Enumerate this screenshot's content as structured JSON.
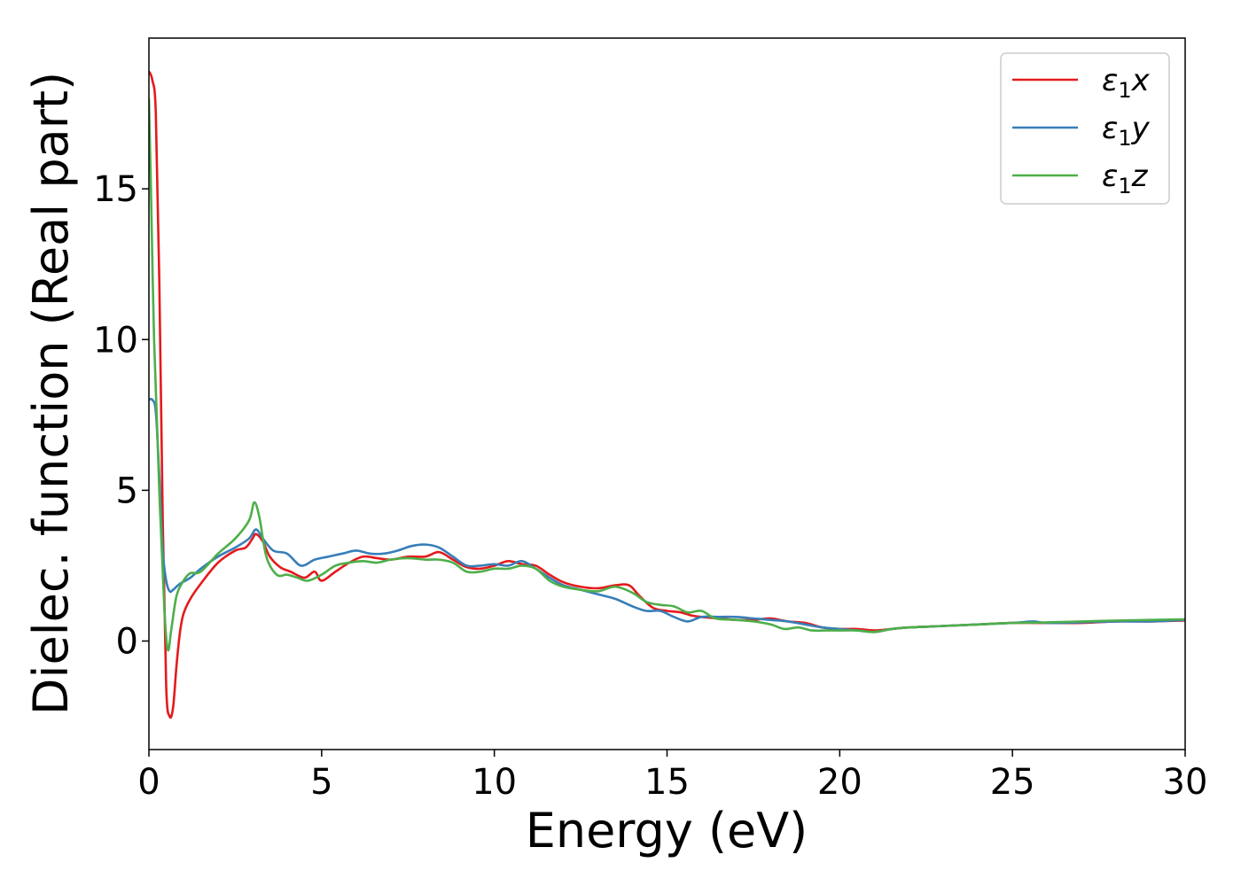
{
  "chart_data": {
    "type": "line",
    "xlabel": "Energy (eV)",
    "ylabel": "Dielec. function (Real part)",
    "xlim": [
      0,
      30
    ],
    "ylim": [
      -3.6,
      20
    ],
    "xticks": [
      0,
      5,
      10,
      15,
      20,
      25,
      30
    ],
    "yticks": [
      0,
      5,
      10,
      15
    ],
    "grid": false,
    "legend_position": "top-right",
    "series": [
      {
        "name": "ε1x",
        "legend_main": "ε",
        "legend_sub": "1",
        "legend_tail": "x",
        "color": "#e41a1c",
        "points": [
          [
            0,
            18.9
          ],
          [
            0.1,
            18.6
          ],
          [
            0.2,
            17.5
          ],
          [
            0.3,
            12
          ],
          [
            0.4,
            4
          ],
          [
            0.5,
            -1.5
          ],
          [
            0.6,
            -2.5
          ],
          [
            0.7,
            -2.2
          ],
          [
            0.8,
            -0.8
          ],
          [
            0.9,
            0.3
          ],
          [
            1.0,
            0.9
          ],
          [
            1.2,
            1.4
          ],
          [
            1.5,
            1.9
          ],
          [
            2.0,
            2.6
          ],
          [
            2.5,
            3.0
          ],
          [
            2.8,
            3.1
          ],
          [
            3.0,
            3.4
          ],
          [
            3.1,
            3.55
          ],
          [
            3.3,
            3.3
          ],
          [
            3.5,
            2.8
          ],
          [
            3.8,
            2.45
          ],
          [
            4.1,
            2.3
          ],
          [
            4.5,
            2.1
          ],
          [
            4.8,
            2.3
          ],
          [
            5.0,
            2.0
          ],
          [
            5.4,
            2.3
          ],
          [
            5.8,
            2.6
          ],
          [
            6.2,
            2.8
          ],
          [
            6.6,
            2.75
          ],
          [
            7.0,
            2.7
          ],
          [
            7.5,
            2.8
          ],
          [
            8.0,
            2.8
          ],
          [
            8.4,
            2.95
          ],
          [
            8.8,
            2.7
          ],
          [
            9.2,
            2.45
          ],
          [
            9.6,
            2.4
          ],
          [
            10.0,
            2.5
          ],
          [
            10.4,
            2.65
          ],
          [
            10.8,
            2.55
          ],
          [
            11.2,
            2.5
          ],
          [
            11.6,
            2.2
          ],
          [
            12.0,
            1.95
          ],
          [
            12.5,
            1.8
          ],
          [
            13.0,
            1.75
          ],
          [
            13.5,
            1.85
          ],
          [
            13.9,
            1.85
          ],
          [
            14.2,
            1.5
          ],
          [
            14.6,
            1.1
          ],
          [
            15.0,
            1.0
          ],
          [
            15.4,
            0.95
          ],
          [
            15.7,
            0.85
          ],
          [
            16.0,
            0.8
          ],
          [
            16.5,
            0.75
          ],
          [
            17.0,
            0.7
          ],
          [
            17.5,
            0.7
          ],
          [
            18.0,
            0.75
          ],
          [
            18.5,
            0.65
          ],
          [
            19.0,
            0.6
          ],
          [
            19.5,
            0.45
          ],
          [
            20.0,
            0.4
          ],
          [
            20.5,
            0.4
          ],
          [
            21.0,
            0.35
          ],
          [
            21.5,
            0.4
          ],
          [
            22.0,
            0.45
          ],
          [
            23.0,
            0.5
          ],
          [
            24.0,
            0.55
          ],
          [
            25.0,
            0.6
          ],
          [
            26.0,
            0.6
          ],
          [
            27.0,
            0.6
          ],
          [
            28.0,
            0.65
          ],
          [
            29.0,
            0.65
          ],
          [
            30.0,
            0.68
          ]
        ]
      },
      {
        "name": "ε1y",
        "legend_main": "ε",
        "legend_sub": "1",
        "legend_tail": "y",
        "color": "#377eb8",
        "points": [
          [
            0,
            8.0
          ],
          [
            0.1,
            8.0
          ],
          [
            0.2,
            7.6
          ],
          [
            0.3,
            5.5
          ],
          [
            0.4,
            3.0
          ],
          [
            0.5,
            2.0
          ],
          [
            0.6,
            1.65
          ],
          [
            0.7,
            1.7
          ],
          [
            0.9,
            1.9
          ],
          [
            1.2,
            2.1
          ],
          [
            1.5,
            2.4
          ],
          [
            2.0,
            2.8
          ],
          [
            2.5,
            3.1
          ],
          [
            2.9,
            3.4
          ],
          [
            3.1,
            3.7
          ],
          [
            3.3,
            3.4
          ],
          [
            3.6,
            3.0
          ],
          [
            4.0,
            2.9
          ],
          [
            4.4,
            2.5
          ],
          [
            4.8,
            2.7
          ],
          [
            5.2,
            2.8
          ],
          [
            5.6,
            2.9
          ],
          [
            6.0,
            3.0
          ],
          [
            6.4,
            2.9
          ],
          [
            6.8,
            2.9
          ],
          [
            7.2,
            3.0
          ],
          [
            7.6,
            3.15
          ],
          [
            8.0,
            3.2
          ],
          [
            8.4,
            3.1
          ],
          [
            8.8,
            2.8
          ],
          [
            9.2,
            2.5
          ],
          [
            9.6,
            2.5
          ],
          [
            10.0,
            2.55
          ],
          [
            10.4,
            2.5
          ],
          [
            10.8,
            2.65
          ],
          [
            11.2,
            2.4
          ],
          [
            11.6,
            2.1
          ],
          [
            12.0,
            1.85
          ],
          [
            12.5,
            1.7
          ],
          [
            13.0,
            1.55
          ],
          [
            13.5,
            1.4
          ],
          [
            14.0,
            1.15
          ],
          [
            14.4,
            1.0
          ],
          [
            14.8,
            1.0
          ],
          [
            15.2,
            0.8
          ],
          [
            15.6,
            0.65
          ],
          [
            16.0,
            0.8
          ],
          [
            16.5,
            0.8
          ],
          [
            17.0,
            0.8
          ],
          [
            17.5,
            0.75
          ],
          [
            18.0,
            0.7
          ],
          [
            18.5,
            0.65
          ],
          [
            19.0,
            0.55
          ],
          [
            19.5,
            0.45
          ],
          [
            20.0,
            0.4
          ],
          [
            20.5,
            0.35
          ],
          [
            21.0,
            0.3
          ],
          [
            21.5,
            0.4
          ],
          [
            22.0,
            0.45
          ],
          [
            23.0,
            0.5
          ],
          [
            24.0,
            0.55
          ],
          [
            25.0,
            0.6
          ],
          [
            25.6,
            0.65
          ],
          [
            26.0,
            0.6
          ],
          [
            27.0,
            0.62
          ],
          [
            28.0,
            0.65
          ],
          [
            29.0,
            0.65
          ],
          [
            30.0,
            0.7
          ]
        ]
      },
      {
        "name": "ε1z",
        "legend_main": "ε",
        "legend_sub": "1",
        "legend_tail": "z",
        "color": "#4daf4a",
        "points": [
          [
            0,
            18.0
          ],
          [
            0.05,
            15.5
          ],
          [
            0.15,
            10
          ],
          [
            0.3,
            5
          ],
          [
            0.45,
            1.0
          ],
          [
            0.55,
            -0.3
          ],
          [
            0.65,
            0.4
          ],
          [
            0.8,
            1.5
          ],
          [
            1.0,
            2.0
          ],
          [
            1.2,
            2.25
          ],
          [
            1.5,
            2.3
          ],
          [
            2.0,
            2.9
          ],
          [
            2.5,
            3.4
          ],
          [
            2.9,
            4.0
          ],
          [
            3.05,
            4.6
          ],
          [
            3.2,
            4.1
          ],
          [
            3.4,
            2.8
          ],
          [
            3.7,
            2.2
          ],
          [
            4.0,
            2.2
          ],
          [
            4.3,
            2.1
          ],
          [
            4.6,
            2.0
          ],
          [
            5.0,
            2.2
          ],
          [
            5.4,
            2.5
          ],
          [
            5.8,
            2.6
          ],
          [
            6.2,
            2.65
          ],
          [
            6.6,
            2.6
          ],
          [
            7.0,
            2.7
          ],
          [
            7.5,
            2.75
          ],
          [
            8.0,
            2.7
          ],
          [
            8.4,
            2.7
          ],
          [
            8.8,
            2.6
          ],
          [
            9.2,
            2.3
          ],
          [
            9.6,
            2.3
          ],
          [
            10.0,
            2.4
          ],
          [
            10.4,
            2.4
          ],
          [
            10.8,
            2.5
          ],
          [
            11.2,
            2.4
          ],
          [
            11.6,
            2.0
          ],
          [
            12.0,
            1.8
          ],
          [
            12.5,
            1.7
          ],
          [
            13.0,
            1.65
          ],
          [
            13.5,
            1.8
          ],
          [
            14.0,
            1.6
          ],
          [
            14.4,
            1.3
          ],
          [
            14.8,
            1.2
          ],
          [
            15.2,
            1.15
          ],
          [
            15.6,
            0.95
          ],
          [
            16.0,
            1.0
          ],
          [
            16.4,
            0.75
          ],
          [
            17.0,
            0.7
          ],
          [
            17.5,
            0.65
          ],
          [
            18.0,
            0.55
          ],
          [
            18.4,
            0.4
          ],
          [
            18.8,
            0.45
          ],
          [
            19.2,
            0.35
          ],
          [
            19.6,
            0.35
          ],
          [
            20.0,
            0.35
          ],
          [
            20.5,
            0.35
          ],
          [
            21.0,
            0.3
          ],
          [
            21.5,
            0.4
          ],
          [
            22.0,
            0.45
          ],
          [
            23.0,
            0.5
          ],
          [
            24.0,
            0.55
          ],
          [
            25.0,
            0.6
          ],
          [
            26.0,
            0.62
          ],
          [
            27.0,
            0.65
          ],
          [
            28.0,
            0.68
          ],
          [
            29.0,
            0.7
          ],
          [
            30.0,
            0.72
          ]
        ]
      }
    ]
  }
}
